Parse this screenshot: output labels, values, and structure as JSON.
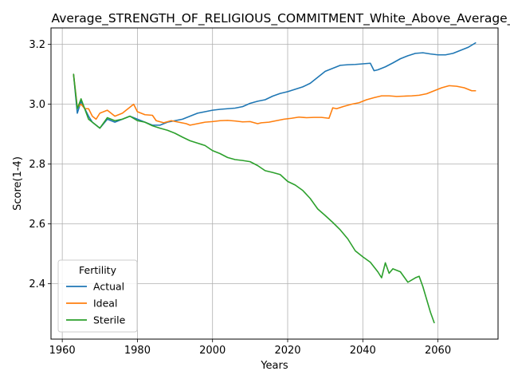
{
  "chart_data": {
    "type": "line",
    "title": "Average_STRENGTH_OF_RELIGIOUS_COMMITMENT_White_Above_Average_",
    "xlabel": "Years",
    "ylabel": "Score(1-4)",
    "xlim": [
      1957,
      2076
    ],
    "ylim": [
      2.215,
      3.255
    ],
    "xticks": [
      1960,
      1980,
      2000,
      2020,
      2040,
      2060
    ],
    "yticks": [
      2.4,
      2.6,
      2.8,
      3.0,
      3.2
    ],
    "grid": true,
    "legend": {
      "title": "Fertility",
      "placement": "lower-left"
    },
    "series": [
      {
        "name": "Actual",
        "color": "#1f77b4",
        "x": [
          1963,
          1964,
          1965,
          1967,
          1968,
          1970,
          1972,
          1974,
          1976,
          1978,
          1980,
          1982,
          1984,
          1986,
          1988,
          1990,
          1992,
          1994,
          1996,
          1998,
          2000,
          2002,
          2004,
          2006,
          2008,
          2010,
          2012,
          2014,
          2016,
          2018,
          2020,
          2022,
          2024,
          2026,
          2028,
          2030,
          2032,
          2034,
          2036,
          2038,
          2040,
          2042,
          2043,
          2044,
          2046,
          2048,
          2050,
          2052,
          2054,
          2056,
          2058,
          2060,
          2062,
          2064,
          2066,
          2068,
          2070
        ],
        "values": [
          3.1,
          2.97,
          3.01,
          2.96,
          2.94,
          2.92,
          2.95,
          2.94,
          2.95,
          2.96,
          2.95,
          2.94,
          2.93,
          2.93,
          2.94,
          2.945,
          2.95,
          2.96,
          2.97,
          2.975,
          2.98,
          2.983,
          2.985,
          2.987,
          2.992,
          3.003,
          3.01,
          3.015,
          3.027,
          3.036,
          3.042,
          3.05,
          3.058,
          3.07,
          3.09,
          3.11,
          3.12,
          3.13,
          3.132,
          3.133,
          3.135,
          3.137,
          3.112,
          3.115,
          3.125,
          3.138,
          3.152,
          3.162,
          3.17,
          3.172,
          3.168,
          3.165,
          3.165,
          3.17,
          3.18,
          3.19,
          3.205
        ]
      },
      {
        "name": "Ideal",
        "color": "#ff7f0e",
        "x": [
          1963,
          1964,
          1965,
          1966,
          1967,
          1968,
          1969,
          1970,
          1972,
          1974,
          1976,
          1978,
          1979,
          1980,
          1982,
          1984,
          1985,
          1987,
          1989,
          1991,
          1993,
          1994,
          1996,
          1998,
          2000,
          2002,
          2004,
          2006,
          2008,
          2010,
          2012,
          2013,
          2015,
          2017,
          2019,
          2021,
          2023,
          2025,
          2027,
          2029,
          2031,
          2032,
          2033,
          2035,
          2037,
          2039,
          2041,
          2043,
          2045,
          2047,
          2049,
          2051,
          2053,
          2055,
          2057,
          2059,
          2061,
          2063,
          2065,
          2067,
          2069,
          2070
        ],
        "values": [
          3.1,
          2.99,
          3.0,
          2.985,
          2.985,
          2.96,
          2.95,
          2.97,
          2.98,
          2.96,
          2.97,
          2.99,
          3.0,
          2.975,
          2.965,
          2.963,
          2.945,
          2.938,
          2.945,
          2.94,
          2.935,
          2.93,
          2.935,
          2.94,
          2.942,
          2.945,
          2.946,
          2.944,
          2.941,
          2.942,
          2.935,
          2.938,
          2.94,
          2.945,
          2.95,
          2.953,
          2.957,
          2.955,
          2.956,
          2.956,
          2.953,
          2.988,
          2.985,
          2.993,
          3.0,
          3.005,
          3.015,
          3.022,
          3.028,
          3.028,
          3.026,
          3.027,
          3.028,
          3.03,
          3.035,
          3.045,
          3.055,
          3.062,
          3.06,
          3.055,
          3.045,
          3.045
        ]
      },
      {
        "name": "Sterile",
        "color": "#2ca02c",
        "x": [
          1963,
          1964,
          1965,
          1967,
          1969,
          1970,
          1972,
          1974,
          1976,
          1978,
          1980,
          1982,
          1984,
          1986,
          1988,
          1990,
          1992,
          1994,
          1996,
          1998,
          2000,
          2002,
          2004,
          2006,
          2008,
          2010,
          2012,
          2014,
          2016,
          2018,
          2020,
          2022,
          2024,
          2026,
          2028,
          2030,
          2032,
          2034,
          2036,
          2038,
          2040,
          2042,
          2044,
          2045,
          2046,
          2047,
          2048,
          2050,
          2052,
          2054,
          2055,
          2056,
          2058,
          2059
        ],
        "values": [
          3.1,
          2.985,
          3.018,
          2.95,
          2.93,
          2.92,
          2.955,
          2.945,
          2.95,
          2.96,
          2.945,
          2.94,
          2.928,
          2.92,
          2.913,
          2.903,
          2.89,
          2.878,
          2.87,
          2.862,
          2.845,
          2.835,
          2.822,
          2.815,
          2.812,
          2.808,
          2.795,
          2.778,
          2.772,
          2.765,
          2.742,
          2.73,
          2.712,
          2.685,
          2.65,
          2.628,
          2.605,
          2.58,
          2.55,
          2.51,
          2.49,
          2.472,
          2.44,
          2.42,
          2.47,
          2.435,
          2.45,
          2.44,
          2.405,
          2.42,
          2.425,
          2.39,
          2.305,
          2.27
        ]
      }
    ]
  }
}
